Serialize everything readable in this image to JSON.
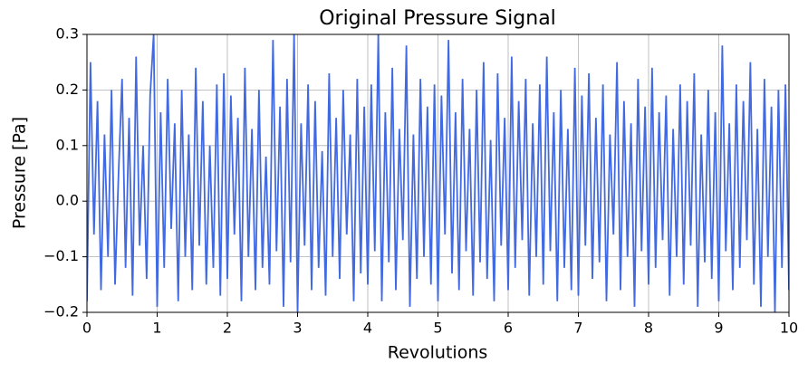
{
  "chart_data": {
    "type": "line",
    "title": "Original Pressure Signal",
    "xlabel": "Revolutions",
    "ylabel": "Pressure [Pa]",
    "x": [
      0,
      0.05,
      0.1,
      0.15,
      0.2,
      0.25,
      0.3,
      0.35,
      0.4,
      0.45,
      0.5,
      0.55,
      0.6,
      0.65,
      0.7,
      0.75,
      0.8,
      0.85,
      0.9,
      0.95,
      1,
      1.05,
      1.1,
      1.15,
      1.2,
      1.25,
      1.3,
      1.35,
      1.4,
      1.45,
      1.5,
      1.55,
      1.6,
      1.65,
      1.7,
      1.75,
      1.8,
      1.85,
      1.9,
      1.95,
      2,
      2.05,
      2.1,
      2.15,
      2.2,
      2.25,
      2.3,
      2.35,
      2.4,
      2.45,
      2.5,
      2.55,
      2.6,
      2.65,
      2.7,
      2.75,
      2.8,
      2.85,
      2.9,
      2.95,
      3,
      3.05,
      3.1,
      3.15,
      3.2,
      3.25,
      3.3,
      3.35,
      3.4,
      3.45,
      3.5,
      3.55,
      3.6,
      3.65,
      3.7,
      3.75,
      3.8,
      3.85,
      3.9,
      3.95,
      4,
      4.05,
      4.1,
      4.15,
      4.2,
      4.25,
      4.3,
      4.35,
      4.4,
      4.45,
      4.5,
      4.55,
      4.6,
      4.65,
      4.7,
      4.75,
      4.8,
      4.85,
      4.9,
      4.95,
      5,
      5.05,
      5.1,
      5.15,
      5.2,
      5.25,
      5.3,
      5.35,
      5.4,
      5.45,
      5.5,
      5.55,
      5.6,
      5.65,
      5.7,
      5.75,
      5.8,
      5.85,
      5.9,
      5.95,
      6,
      6.05,
      6.1,
      6.15,
      6.2,
      6.25,
      6.3,
      6.35,
      6.4,
      6.45,
      6.5,
      6.55,
      6.6,
      6.65,
      6.7,
      6.75,
      6.8,
      6.85,
      6.9,
      6.95,
      7,
      7.05,
      7.1,
      7.15,
      7.2,
      7.25,
      7.3,
      7.35,
      7.4,
      7.45,
      7.5,
      7.55,
      7.6,
      7.65,
      7.7,
      7.75,
      7.8,
      7.85,
      7.9,
      7.95,
      8,
      8.05,
      8.1,
      8.15,
      8.2,
      8.25,
      8.3,
      8.35,
      8.4,
      8.45,
      8.5,
      8.55,
      8.6,
      8.65,
      8.7,
      8.75,
      8.8,
      8.85,
      8.9,
      8.95,
      9,
      9.05,
      9.1,
      9.15,
      9.2,
      9.25,
      9.3,
      9.35,
      9.4,
      9.45,
      9.5,
      9.55,
      9.6,
      9.65,
      9.7,
      9.75,
      9.8,
      9.85,
      9.9,
      9.95,
      10
    ],
    "series": [
      {
        "color": "#4169e1",
        "values": [
          -0.18,
          0.25,
          -0.06,
          0.18,
          -0.16,
          0.12,
          -0.1,
          0.2,
          -0.15,
          0.05,
          0.22,
          -0.12,
          0.15,
          -0.17,
          0.26,
          -0.08,
          0.1,
          -0.14,
          0.19,
          0.3,
          -0.19,
          0.16,
          -0.12,
          0.22,
          -0.05,
          0.14,
          -0.18,
          0.2,
          -0.1,
          0.12,
          -0.16,
          0.24,
          -0.08,
          0.18,
          -0.15,
          0.1,
          -0.12,
          0.21,
          -0.17,
          0.23,
          -0.14,
          0.19,
          -0.06,
          0.15,
          -0.18,
          0.24,
          -0.1,
          0.13,
          -0.16,
          0.2,
          -0.12,
          0.08,
          -0.15,
          0.29,
          -0.09,
          0.17,
          -0.19,
          0.22,
          -0.11,
          0.3,
          -0.2,
          0.14,
          -0.08,
          0.21,
          -0.16,
          0.18,
          -0.12,
          0.09,
          -0.17,
          0.23,
          -0.1,
          0.15,
          -0.14,
          0.2,
          -0.06,
          0.12,
          -0.18,
          0.22,
          -0.13,
          0.17,
          -0.15,
          0.21,
          -0.09,
          0.3,
          -0.18,
          0.16,
          -0.11,
          0.24,
          -0.16,
          0.13,
          -0.07,
          0.28,
          -0.19,
          0.12,
          -0.14,
          0.22,
          -0.1,
          0.17,
          -0.15,
          0.21,
          -0.18,
          0.19,
          -0.06,
          0.29,
          -0.13,
          0.16,
          -0.16,
          0.22,
          -0.09,
          0.13,
          -0.17,
          0.2,
          -0.11,
          0.25,
          -0.14,
          0.11,
          -0.18,
          0.23,
          -0.08,
          0.15,
          -0.16,
          0.26,
          -0.12,
          0.18,
          -0.07,
          0.22,
          -0.17,
          0.14,
          -0.1,
          0.21,
          -0.15,
          0.26,
          -0.09,
          0.16,
          -0.18,
          0.2,
          -0.12,
          0.13,
          -0.16,
          0.24,
          -0.17,
          0.19,
          -0.08,
          0.23,
          -0.14,
          0.15,
          -0.11,
          0.21,
          -0.18,
          0.12,
          -0.06,
          0.25,
          -0.16,
          0.18,
          -0.1,
          0.14,
          -0.19,
          0.22,
          -0.09,
          0.17,
          -0.15,
          0.24,
          -0.12,
          0.16,
          -0.07,
          0.19,
          -0.17,
          0.13,
          -0.1,
          0.21,
          -0.15,
          0.18,
          -0.08,
          0.23,
          -0.19,
          0.12,
          -0.11,
          0.2,
          -0.14,
          0.16,
          -0.18,
          0.28,
          -0.09,
          0.14,
          -0.16,
          0.21,
          -0.12,
          0.18,
          -0.07,
          0.25,
          -0.15,
          0.13,
          -0.19,
          0.22,
          -0.1,
          0.17,
          -0.2,
          0.2,
          -0.12,
          0.21,
          -0.16
        ]
      }
    ],
    "xlim": [
      0,
      10
    ],
    "xticks": [
      0,
      1,
      2,
      3,
      4,
      5,
      6,
      7,
      8,
      9,
      10
    ],
    "ylim": [
      -0.2,
      0.3
    ],
    "yticks": [
      {
        "value": -0.2,
        "label": "−0.2"
      },
      {
        "value": -0.1,
        "label": "−0.1"
      },
      {
        "value": 0,
        "label": "0.0"
      },
      {
        "value": 0.1,
        "label": "0.1"
      },
      {
        "value": 0.2,
        "label": "0.2"
      },
      {
        "value": 0.3,
        "label": "0.3"
      }
    ],
    "grid": true
  }
}
